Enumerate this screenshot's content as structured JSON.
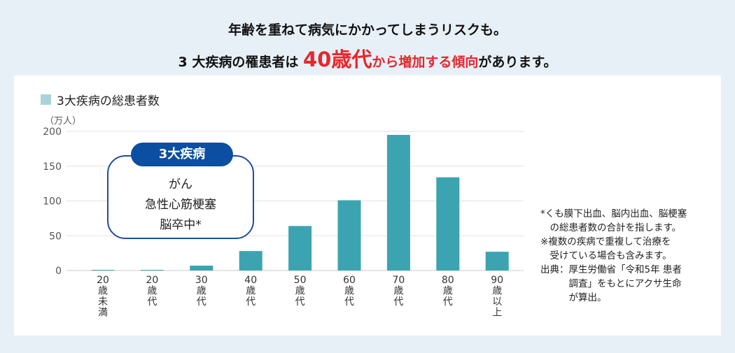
{
  "headline": {
    "line1": "年齢を重ねて病気にかかってしまうリスクも。",
    "line2_prefix": "3 大疾病の罹患者は ",
    "line2_big": "40歳代",
    "line2_red": "から増加する傾向",
    "line2_suffix": "があります。"
  },
  "callout": {
    "tag": "3大疾病",
    "items": [
      "がん",
      "急性心筋梗塞",
      "脳卒中*"
    ]
  },
  "notes": [
    "*くも膜下出血、脳内出血、脳梗塞",
    "　の総患者数の合計を指します。",
    "※複数の疾病で重複して治療を",
    "　受けている場合も含みます。",
    "出典：厚生労働省「令和5年 患者",
    "　　　調査」をもとにアクサ生命",
    "　　　が算出。"
  ],
  "colors": {
    "bar": "#3ba4b0",
    "legend": "#a9d3d8",
    "accent": "#e8262c",
    "callout": "#0b4ea2"
  },
  "chart_data": {
    "type": "bar",
    "title": "3大疾病の総患者数",
    "ylabel": "（万人）",
    "ylim": [
      0,
      200
    ],
    "yticks": [
      0,
      50,
      100,
      150,
      200
    ],
    "grid": true,
    "legend": [
      "3大疾病の総患者数"
    ],
    "legend_position": "top-left",
    "categories": [
      [
        "20",
        "歳",
        "未",
        "満"
      ],
      [
        "20",
        "歳",
        "代"
      ],
      [
        "30",
        "歳",
        "代"
      ],
      [
        "40",
        "歳",
        "代"
      ],
      [
        "50",
        "歳",
        "代"
      ],
      [
        "60",
        "歳",
        "代"
      ],
      [
        "70",
        "歳",
        "代"
      ],
      [
        "80",
        "歳",
        "代"
      ],
      [
        "90",
        "歳",
        "以",
        "上"
      ]
    ],
    "values": [
      1,
      1,
      7,
      28,
      64,
      101,
      195,
      134,
      27
    ]
  }
}
